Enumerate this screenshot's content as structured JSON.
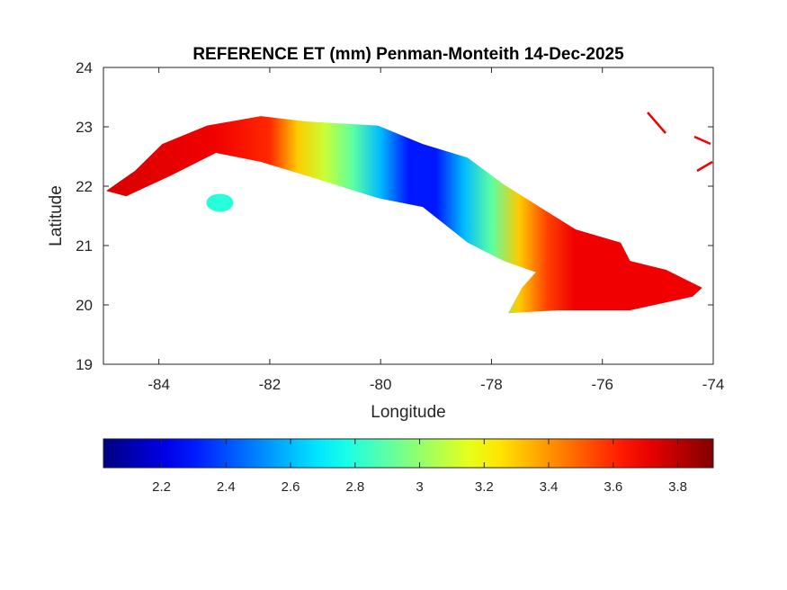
{
  "chart_data": {
    "type": "heatmap",
    "title": "REFERENCE ET (mm) Penman-Monteith 14-Dec-2025",
    "xlabel": "Longitude",
    "ylabel": "Latitude",
    "xlim": [
      -85,
      -74
    ],
    "ylim": [
      19,
      24
    ],
    "xticks": [
      -84,
      -82,
      -80,
      -78,
      -76,
      -74
    ],
    "yticks": [
      19,
      20,
      21,
      22,
      23,
      24
    ],
    "grid": false,
    "colormap": "jet",
    "colorbar": {
      "location": "bottom",
      "range": [
        2.02,
        3.91
      ],
      "ticks": [
        2.2,
        2.4,
        2.6,
        2.8,
        3,
        3.2,
        3.4,
        3.6,
        3.8
      ],
      "tick_labels": [
        "2.2",
        "2.4",
        "2.6",
        "2.8",
        "3",
        "3.2",
        "3.4",
        "3.6",
        "3.8"
      ]
    },
    "main_island_outline": [
      [
        -84.95,
        21.92
      ],
      [
        -84.43,
        22.26
      ],
      [
        -83.94,
        22.71
      ],
      [
        -83.13,
        23.02
      ],
      [
        -82.16,
        23.18
      ],
      [
        -81.35,
        23.09
      ],
      [
        -80.05,
        23.02
      ],
      [
        -79.24,
        22.71
      ],
      [
        -78.43,
        22.48
      ],
      [
        -77.78,
        22.03
      ],
      [
        -77.13,
        21.65
      ],
      [
        -76.48,
        21.27
      ],
      [
        -75.67,
        21.05
      ],
      [
        -75.5,
        20.74
      ],
      [
        -74.85,
        20.59
      ],
      [
        -74.2,
        20.29
      ],
      [
        -74.37,
        20.14
      ],
      [
        -75.5,
        19.91
      ],
      [
        -76.8,
        19.91
      ],
      [
        -77.7,
        19.86
      ],
      [
        -77.45,
        20.29
      ],
      [
        -77.2,
        20.55
      ],
      [
        -77.78,
        20.74
      ],
      [
        -78.43,
        21.05
      ],
      [
        -79.24,
        21.65
      ],
      [
        -80.05,
        21.8
      ],
      [
        -81.35,
        22.18
      ],
      [
        -82.16,
        22.41
      ],
      [
        -82.97,
        22.56
      ],
      [
        -83.78,
        22.18
      ],
      [
        -84.59,
        21.83
      ]
    ],
    "longitudinal_profile": [
      {
        "lon": -85,
        "value": 3.75
      },
      {
        "lon": -83,
        "value": 3.7
      },
      {
        "lon": -82,
        "value": 3.6
      },
      {
        "lon": -81.5,
        "value": 3.3
      },
      {
        "lon": -81,
        "value": 3.1
      },
      {
        "lon": -80.5,
        "value": 2.9
      },
      {
        "lon": -80,
        "value": 2.6
      },
      {
        "lon": -79.5,
        "value": 2.3
      },
      {
        "lon": -79,
        "value": 2.3
      },
      {
        "lon": -78.5,
        "value": 2.6
      },
      {
        "lon": -78,
        "value": 2.9
      },
      {
        "lon": -77.5,
        "value": 3.3
      },
      {
        "lon": -77,
        "value": 3.55
      },
      {
        "lon": -76.5,
        "value": 3.7
      },
      {
        "lon": -75,
        "value": 3.7
      },
      {
        "lon": -74,
        "value": 3.7
      }
    ],
    "isla_de_la_juventud": {
      "center": [
        -82.9,
        21.72
      ],
      "value": 2.8
    }
  }
}
